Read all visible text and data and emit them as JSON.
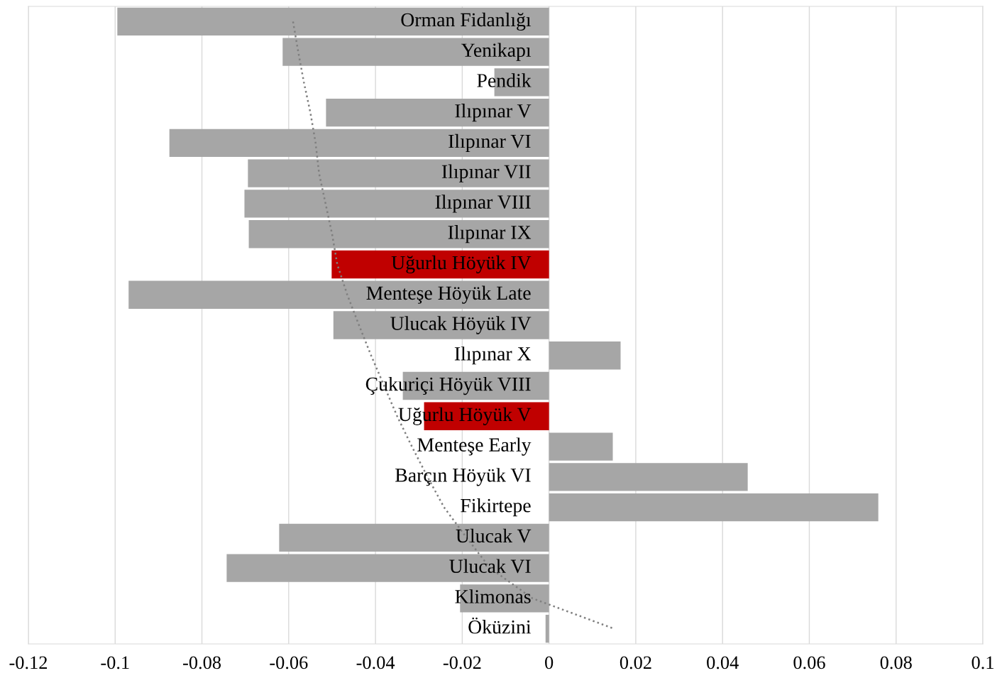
{
  "chart_data": {
    "type": "bar",
    "orientation": "horizontal",
    "categories": [
      "Orman Fidanlığı",
      "Yenikapı",
      "Pendik",
      "Ilıpınar V",
      "Ilıpınar VI",
      "Ilıpınar VII",
      "Ilıpınar VIII",
      "Ilıpınar IX",
      "Uğurlu Höyük IV",
      "Menteşe Höyük Late",
      "Ulucak Höyük IV",
      "Ilıpınar X",
      "Çukuriçi Höyük VIII",
      "Uğurlu Höyük V",
      "Menteşe Early",
      "Barçın Höyük VI",
      "Fikirtepe",
      "Ulucak V",
      "Ulucak VI",
      "Klimonas",
      "Öküzini"
    ],
    "series": [
      {
        "values": [
          -0.0995,
          -0.0614,
          -0.0126,
          -0.0514,
          -0.0875,
          -0.0694,
          -0.0702,
          -0.0692,
          -0.0501,
          -0.0969,
          -0.0497,
          0.0165,
          -0.0337,
          -0.0288,
          0.0147,
          0.0458,
          0.0759,
          -0.0622,
          -0.0743,
          -0.0205,
          -0.0008
        ],
        "colors": [
          "#a6a6a6",
          "#a6a6a6",
          "#a6a6a6",
          "#a6a6a6",
          "#a6a6a6",
          "#a6a6a6",
          "#a6a6a6",
          "#a6a6a6",
          "#c00000",
          "#a6a6a6",
          "#a6a6a6",
          "#a6a6a6",
          "#a6a6a6",
          "#c00000",
          "#a6a6a6",
          "#a6a6a6",
          "#a6a6a6",
          "#a6a6a6",
          "#a6a6a6",
          "#a6a6a6",
          "#a6a6a6"
        ]
      },
      {
        "type": "line",
        "color": "#7f7f7f",
        "line_style": "dotted",
        "values": [
          -0.059,
          -0.0578,
          -0.0565,
          -0.055,
          -0.0538,
          -0.053,
          -0.0515,
          -0.05,
          -0.0488,
          -0.0465,
          -0.0438,
          -0.041,
          -0.038,
          -0.035,
          -0.0316,
          -0.028,
          -0.0242,
          -0.019,
          -0.0136,
          -0.0038,
          0.015
        ]
      }
    ],
    "xlim": [
      -0.12,
      0.1
    ],
    "xticks": [
      -0.12,
      -0.1,
      -0.08,
      -0.06,
      -0.04,
      -0.02,
      0,
      0.02,
      0.04,
      0.06,
      0.08,
      0.1
    ],
    "grid": "x"
  }
}
